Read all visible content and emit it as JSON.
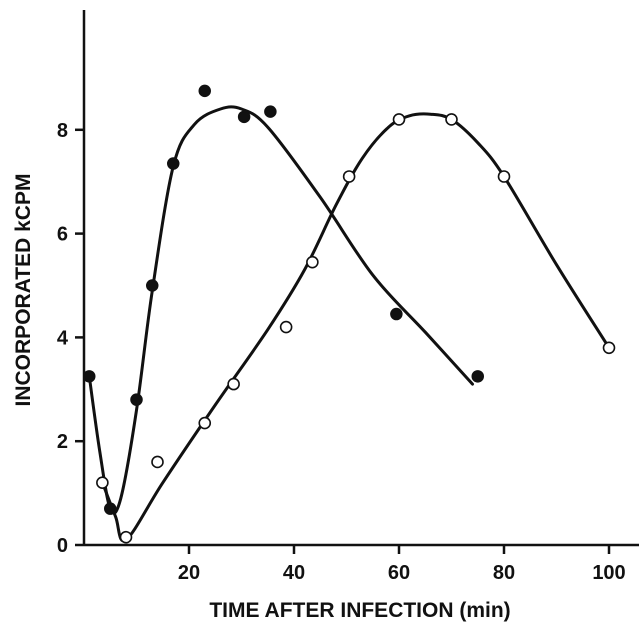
{
  "chart_data": {
    "type": "scatter",
    "xlabel": "TIME AFTER INFECTION (min)",
    "ylabel": "INCORPORATED kCPM",
    "xlim": [
      0,
      105
    ],
    "ylim": [
      0,
      10
    ],
    "x_ticks": [
      20,
      40,
      60,
      80,
      100
    ],
    "y_ticks": [
      0,
      2,
      4,
      6,
      8
    ],
    "x_tick_labels": [
      "20",
      "40",
      "60",
      "80",
      "100"
    ],
    "y_tick_labels": [
      "0",
      "2",
      "4",
      "6",
      "8"
    ],
    "grid": false,
    "legend": "none",
    "series": [
      {
        "marker": "filled-circle",
        "points": [
          [
            1,
            3.25
          ],
          [
            5,
            0.7
          ],
          [
            10,
            2.8
          ],
          [
            13,
            5.0
          ],
          [
            17,
            7.35
          ],
          [
            23,
            8.75
          ],
          [
            30.5,
            8.25
          ],
          [
            35.5,
            8.35
          ],
          [
            59.5,
            4.45
          ],
          [
            75,
            3.25
          ]
        ],
        "curve": [
          [
            1,
            3.25
          ],
          [
            3,
            1.8
          ],
          [
            5,
            0.7
          ],
          [
            7,
            0.9
          ],
          [
            10,
            2.6
          ],
          [
            13,
            4.9
          ],
          [
            17,
            7.3
          ],
          [
            21,
            8.1
          ],
          [
            26,
            8.4
          ],
          [
            30,
            8.4
          ],
          [
            35,
            8.05
          ],
          [
            45,
            6.7
          ],
          [
            55,
            5.2
          ],
          [
            65,
            4.1
          ],
          [
            74,
            3.1
          ]
        ]
      },
      {
        "marker": "open-circle",
        "points": [
          [
            3.5,
            1.2
          ],
          [
            8,
            0.15
          ],
          [
            14,
            1.6
          ],
          [
            23,
            2.35
          ],
          [
            28.5,
            3.1
          ],
          [
            38.5,
            4.2
          ],
          [
            43.5,
            5.45
          ],
          [
            50.5,
            7.1
          ],
          [
            60,
            8.2
          ],
          [
            70,
            8.2
          ],
          [
            80,
            7.1
          ],
          [
            100,
            3.8
          ]
        ],
        "curve": [
          [
            3.5,
            1.2
          ],
          [
            6,
            0.55
          ],
          [
            8,
            0.1
          ],
          [
            15,
            1.2
          ],
          [
            25,
            2.7
          ],
          [
            35,
            4.15
          ],
          [
            42,
            5.3
          ],
          [
            48,
            6.55
          ],
          [
            53,
            7.45
          ],
          [
            58,
            8.05
          ],
          [
            62,
            8.27
          ],
          [
            66,
            8.3
          ],
          [
            70,
            8.2
          ],
          [
            75,
            7.75
          ],
          [
            80,
            7.1
          ],
          [
            90,
            5.4
          ],
          [
            100,
            3.8
          ]
        ]
      }
    ]
  }
}
